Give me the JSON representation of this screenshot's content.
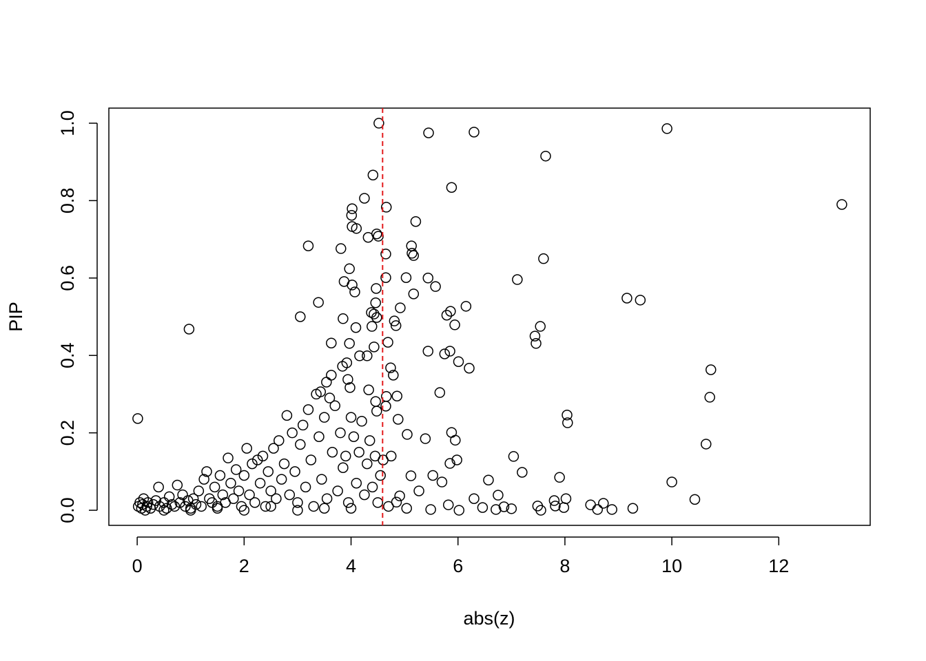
{
  "chart_data": {
    "type": "scatter",
    "x_label": "abs(z)",
    "y_label": "PIP",
    "xlim": [
      -0.53,
      13.71
    ],
    "ylim": [
      -0.039,
      1.039
    ],
    "xticks": [
      0,
      2,
      4,
      6,
      8,
      10,
      12
    ],
    "yticks": [
      {
        "value": 0,
        "label": "0.0"
      },
      0.2,
      0.4,
      0.6,
      0.8,
      {
        "value": 1,
        "label": "1.0"
      }
    ],
    "color": "#000000",
    "vline": {
      "x": 4.59,
      "color": "#e31a1c"
    },
    "x": [
      4.52,
      5.45,
      6.3,
      9.91,
      7.64,
      13.18,
      4.41,
      5.88,
      4.25,
      4.66,
      4.02,
      4.01,
      5.21,
      4.02,
      4.1,
      4.48,
      4.32,
      4.51,
      3.2,
      5.13,
      3.81,
      5.14,
      4.65,
      5.17,
      7.6,
      3.97,
      4.65,
      5.03,
      5.44,
      7.11,
      3.87,
      4.02,
      5.58,
      4.47,
      4.07,
      5.17,
      9.16,
      9.41,
      3.39,
      4.46,
      6.15,
      4.92,
      5.86,
      4.38,
      4.43,
      5.79,
      3.05,
      4.48,
      3.85,
      4.81,
      4.84,
      5.94,
      7.54,
      4.09,
      4.39,
      0.97,
      7.44,
      4.69,
      3.63,
      3.97,
      7.46,
      4.43,
      5.44,
      5.85,
      5.75,
      4.16,
      4.3,
      6.01,
      3.92,
      3.84,
      4.74,
      10.73,
      6.21,
      4.79,
      3.63,
      3.94,
      3.98,
      3.54,
      5.66,
      3.43,
      4.33,
      10.71,
      4.86,
      4.66,
      4.46,
      4.65,
      0.01,
      4.48,
      4.88,
      8.04,
      8.05,
      5.88,
      5.05,
      10.64,
      5.95,
      5.39,
      7.04,
      7.2,
      7.9,
      10.0,
      6.57,
      5.98,
      5.85,
      5.12,
      10.43,
      8.48,
      8.72,
      8.61,
      8.88,
      9.27,
      7.49,
      7.55,
      8.02,
      7.8,
      7.98,
      7.82,
      6.75,
      7.0,
      6.86,
      6.46,
      6.3,
      6.02,
      5.7,
      5.53,
      5.27,
      4.91,
      4.85,
      5.04,
      5.49,
      5.82,
      6.71,
      0.02,
      0.05,
      0.08,
      0.1,
      0.12,
      0.15,
      0.18,
      0.2,
      0.25,
      0.3,
      0.35,
      0.4,
      0.42,
      0.5,
      0.55,
      0.6,
      0.65,
      0.7,
      0.75,
      0.8,
      0.85,
      0.9,
      0.95,
      1.0,
      1.05,
      1.1,
      1.15,
      1.2,
      1.25,
      1.3,
      1.35,
      1.4,
      1.45,
      1.5,
      1.55,
      1.6,
      1.65,
      1.7,
      1.75,
      1.8,
      1.85,
      1.9,
      1.95,
      2.0,
      2.05,
      2.1,
      2.15,
      2.2,
      2.25,
      2.3,
      2.35,
      2.4,
      2.45,
      2.5,
      2.55,
      2.6,
      2.65,
      2.7,
      2.75,
      2.8,
      2.85,
      2.9,
      2.95,
      3.0,
      3.05,
      3.1,
      3.15,
      3.2,
      3.25,
      3.3,
      3.35,
      3.4,
      3.45,
      3.5,
      3.55,
      3.6,
      3.65,
      3.7,
      3.75,
      3.8,
      3.85,
      3.9,
      3.95,
      4.0,
      4.05,
      4.1,
      4.15,
      4.2,
      4.25,
      4.3,
      4.35,
      4.4,
      4.45,
      4.5,
      4.55,
      4.6,
      4.7,
      4.75,
      1.0,
      2.0,
      3.0,
      3.5,
      4.0,
      2.5,
      1.5,
      0.5
    ],
    "y": [
      1.0,
      0.975,
      0.977,
      0.986,
      0.915,
      0.79,
      0.866,
      0.834,
      0.806,
      0.783,
      0.779,
      0.762,
      0.746,
      0.733,
      0.728,
      0.714,
      0.705,
      0.708,
      0.683,
      0.683,
      0.676,
      0.664,
      0.662,
      0.658,
      0.65,
      0.624,
      0.601,
      0.601,
      0.6,
      0.596,
      0.591,
      0.582,
      0.578,
      0.573,
      0.564,
      0.559,
      0.548,
      0.543,
      0.537,
      0.536,
      0.527,
      0.523,
      0.514,
      0.511,
      0.507,
      0.504,
      0.5,
      0.498,
      0.495,
      0.489,
      0.477,
      0.479,
      0.475,
      0.472,
      0.475,
      0.468,
      0.45,
      0.434,
      0.432,
      0.431,
      0.431,
      0.422,
      0.411,
      0.411,
      0.404,
      0.399,
      0.399,
      0.384,
      0.381,
      0.372,
      0.368,
      0.363,
      0.367,
      0.349,
      0.349,
      0.338,
      0.317,
      0.331,
      0.304,
      0.306,
      0.311,
      0.292,
      0.295,
      0.294,
      0.281,
      0.269,
      0.237,
      0.256,
      0.235,
      0.246,
      0.226,
      0.201,
      0.196,
      0.171,
      0.181,
      0.185,
      0.139,
      0.098,
      0.085,
      0.073,
      0.078,
      0.13,
      0.121,
      0.089,
      0.028,
      0.014,
      0.018,
      0.002,
      0.002,
      0.005,
      0.011,
      0.0,
      0.03,
      0.025,
      0.007,
      0.011,
      0.039,
      0.004,
      0.009,
      0.007,
      0.03,
      0.0,
      0.073,
      0.09,
      0.05,
      0.037,
      0.021,
      0.005,
      0.002,
      0.014,
      0.002,
      0.01,
      0.02,
      0.005,
      0.015,
      0.03,
      0.0,
      0.01,
      0.02,
      0.005,
      0.015,
      0.025,
      0.06,
      0.01,
      0.02,
      0.005,
      0.035,
      0.015,
      0.01,
      0.065,
      0.02,
      0.04,
      0.01,
      0.025,
      0.005,
      0.03,
      0.015,
      0.05,
      0.01,
      0.08,
      0.1,
      0.03,
      0.02,
      0.06,
      0.01,
      0.09,
      0.04,
      0.02,
      0.135,
      0.07,
      0.03,
      0.105,
      0.05,
      0.01,
      0.09,
      0.16,
      0.04,
      0.12,
      0.02,
      0.13,
      0.07,
      0.14,
      0.01,
      0.1,
      0.05,
      0.16,
      0.03,
      0.18,
      0.08,
      0.12,
      0.245,
      0.04,
      0.2,
      0.1,
      0.02,
      0.17,
      0.22,
      0.06,
      0.26,
      0.13,
      0.01,
      0.3,
      0.19,
      0.08,
      0.24,
      0.03,
      0.29,
      0.15,
      0.27,
      0.05,
      0.2,
      0.11,
      0.14,
      0.02,
      0.24,
      0.19,
      0.07,
      0.15,
      0.23,
      0.04,
      0.12,
      0.18,
      0.06,
      0.14,
      0.02,
      0.09,
      0.13,
      0.01,
      0.14,
      0.0,
      0.0,
      0.0,
      0.005,
      0.005,
      0.01,
      0.005,
      0.0
    ]
  }
}
